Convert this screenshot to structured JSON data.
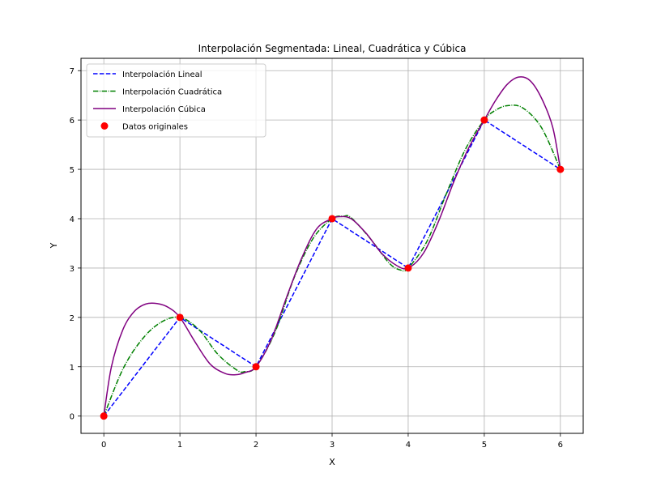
{
  "chart_data": {
    "type": "line",
    "title": "Interpolación Segmentada: Lineal, Cuadrática y Cúbica",
    "xlabel": "X",
    "ylabel": "Y",
    "xlim": [
      -0.3,
      6.3
    ],
    "ylim": [
      -0.35,
      7.25
    ],
    "xticks": [
      0,
      1,
      2,
      3,
      4,
      5,
      6
    ],
    "yticks": [
      0,
      1,
      2,
      3,
      4,
      5,
      6,
      7
    ],
    "grid": true,
    "legend_position": "top-left",
    "points": {
      "name": "Datos originales",
      "color": "#ff0000",
      "x": [
        0,
        1,
        2,
        3,
        4,
        5,
        6
      ],
      "y": [
        0,
        2,
        1,
        4,
        3,
        6,
        5
      ]
    },
    "series": [
      {
        "name": "Interpolación Lineal",
        "color": "#0000ff",
        "style": "dashed",
        "x": [
          0,
          1,
          2,
          3,
          4,
          5,
          6
        ],
        "y": [
          0,
          2,
          1,
          4,
          3,
          6,
          5
        ]
      },
      {
        "name": "Interpolación Cuadrática",
        "color": "#008000",
        "style": "dashdot",
        "x": [
          0,
          0.25,
          0.5,
          0.75,
          1,
          1.25,
          1.5,
          1.75,
          1.85,
          2,
          2.25,
          2.5,
          2.75,
          3,
          3.15,
          3.25,
          3.5,
          3.75,
          3.9,
          4,
          4.25,
          4.5,
          4.75,
          5,
          5.15,
          5.3,
          5.5,
          5.75,
          6
        ],
        "y": [
          0,
          0.95,
          1.55,
          1.9,
          2.0,
          1.75,
          1.25,
          0.93,
          0.9,
          1.0,
          1.7,
          2.8,
          3.6,
          4.0,
          4.05,
          4.02,
          3.6,
          3.1,
          2.96,
          3.0,
          3.55,
          4.5,
          5.4,
          6.0,
          6.2,
          6.29,
          6.25,
          5.85,
          5.0
        ]
      },
      {
        "name": "Interpolación Cúbica",
        "color": "#800080",
        "style": "solid",
        "x": [
          0,
          0.1,
          0.25,
          0.4,
          0.55,
          0.7,
          0.85,
          1,
          1.2,
          1.4,
          1.6,
          1.75,
          1.85,
          2,
          2.2,
          2.4,
          2.6,
          2.8,
          3,
          3.1,
          3.25,
          3.45,
          3.65,
          3.85,
          4,
          4.2,
          4.4,
          4.6,
          4.8,
          5,
          5.15,
          5.3,
          5.45,
          5.6,
          5.75,
          5.9,
          6
        ],
        "y": [
          0,
          1.0,
          1.75,
          2.12,
          2.27,
          2.28,
          2.2,
          2.0,
          1.5,
          1.05,
          0.86,
          0.84,
          0.88,
          1.0,
          1.55,
          2.4,
          3.2,
          3.8,
          4.0,
          4.04,
          4.0,
          3.7,
          3.3,
          3.05,
          3.0,
          3.3,
          3.95,
          4.75,
          5.45,
          6.0,
          6.4,
          6.72,
          6.87,
          6.8,
          6.45,
          5.85,
          5.0
        ]
      }
    ]
  }
}
